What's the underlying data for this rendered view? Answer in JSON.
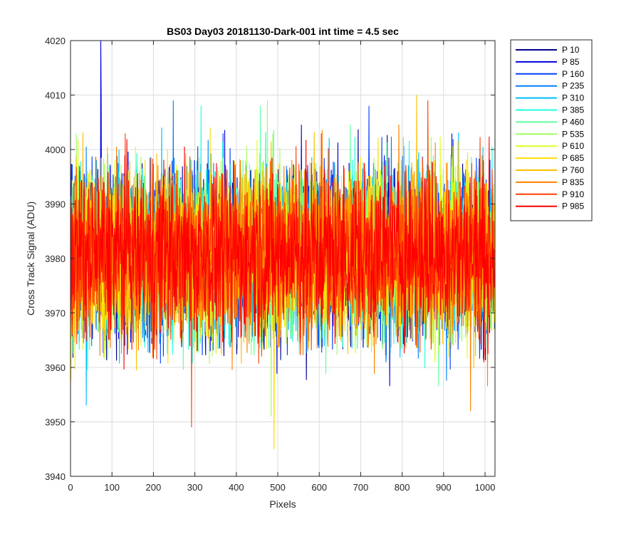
{
  "chart_data": {
    "type": "line",
    "title": "BS03 Day03 20181130-Dark-001 int time = 4.5 sec",
    "xlabel": "Pixels",
    "ylabel": "Cross Track Signal (ADU)",
    "xlim": [
      0,
      1024
    ],
    "ylim": [
      3940,
      4020
    ],
    "xticks": [
      0,
      100,
      200,
      300,
      400,
      500,
      600,
      700,
      800,
      900,
      1000
    ],
    "yticks": [
      3940,
      3950,
      3960,
      3970,
      3980,
      3990,
      4000,
      4010,
      4020
    ],
    "grid": true,
    "legend_location": "outside-top-right",
    "x_count": 1024,
    "y_mean_approx": 3981,
    "y_spread_approx": [
      3955,
      4005
    ],
    "series": [
      {
        "name": "P 10",
        "color": "#00008f",
        "outliers": []
      },
      {
        "name": "P 85",
        "color": "#0000e0",
        "outliers": [
          [
            73,
            4020
          ],
          [
            74,
            4009
          ]
        ]
      },
      {
        "name": "P 160",
        "color": "#0040ff",
        "outliers": [
          [
            720,
            4008
          ]
        ]
      },
      {
        "name": "P 235",
        "color": "#0080ff",
        "outliers": [
          [
            248,
            4009
          ]
        ]
      },
      {
        "name": "P 310",
        "color": "#00bfff",
        "outliers": [
          [
            38,
            3953
          ]
        ]
      },
      {
        "name": "P 385",
        "color": "#20ffdf",
        "outliers": [
          [
            315,
            4008
          ]
        ]
      },
      {
        "name": "P 460",
        "color": "#60ff9f",
        "outliers": [
          [
            458,
            4008
          ]
        ]
      },
      {
        "name": "P 535",
        "color": "#9fff60",
        "outliers": [
          [
            475,
            4009
          ],
          [
            484,
            3951
          ]
        ]
      },
      {
        "name": "P 610",
        "color": "#dfff20",
        "outliers": []
      },
      {
        "name": "P 685",
        "color": "#ffdf00",
        "outliers": [
          [
            491,
            3945
          ]
        ]
      },
      {
        "name": "P 760",
        "color": "#ffbf00",
        "outliers": [
          [
            835,
            4010
          ]
        ]
      },
      {
        "name": "P 835",
        "color": "#ff8000",
        "outliers": [
          [
            965,
            3952
          ]
        ]
      },
      {
        "name": "P 910",
        "color": "#ff4000",
        "outliers": [
          [
            292,
            3949
          ],
          [
            862,
            4009
          ]
        ]
      },
      {
        "name": "P 985",
        "color": "#ff0000",
        "outliers": []
      }
    ]
  }
}
